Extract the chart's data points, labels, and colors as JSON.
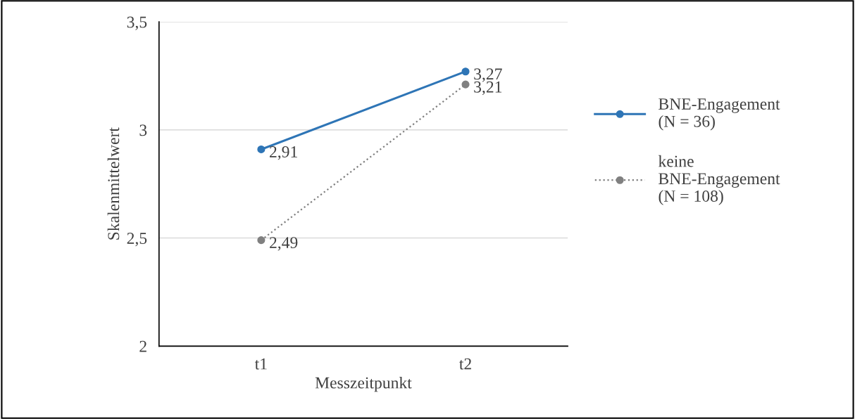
{
  "chart_data": {
    "type": "line",
    "xlabel": "Messzeitpunkt",
    "ylabel": "Skalenmittelwert",
    "categories": [
      "t1",
      "t2"
    ],
    "series": [
      {
        "name": "BNE-Engagement\n(N = 36)",
        "color": "#2e75b6",
        "values": [
          2.91,
          3.27
        ],
        "value_labels": [
          "2,91",
          "3,27"
        ],
        "line_style": "solid"
      },
      {
        "name": "keine\nBNE-Engagement\n(N = 108)",
        "color": "#808080",
        "values": [
          2.49,
          3.21
        ],
        "value_labels": [
          "2,49",
          "3,21"
        ],
        "line_style": "dotted"
      }
    ],
    "ylim": [
      2,
      3.5
    ],
    "yticks": [
      {
        "value": 2,
        "label": "2"
      },
      {
        "value": 2.5,
        "label": "2,5"
      },
      {
        "value": 3,
        "label": "3"
      },
      {
        "value": 3.5,
        "label": "3,5"
      }
    ],
    "grid": "y",
    "legend": "right",
    "marker": "circle"
  }
}
